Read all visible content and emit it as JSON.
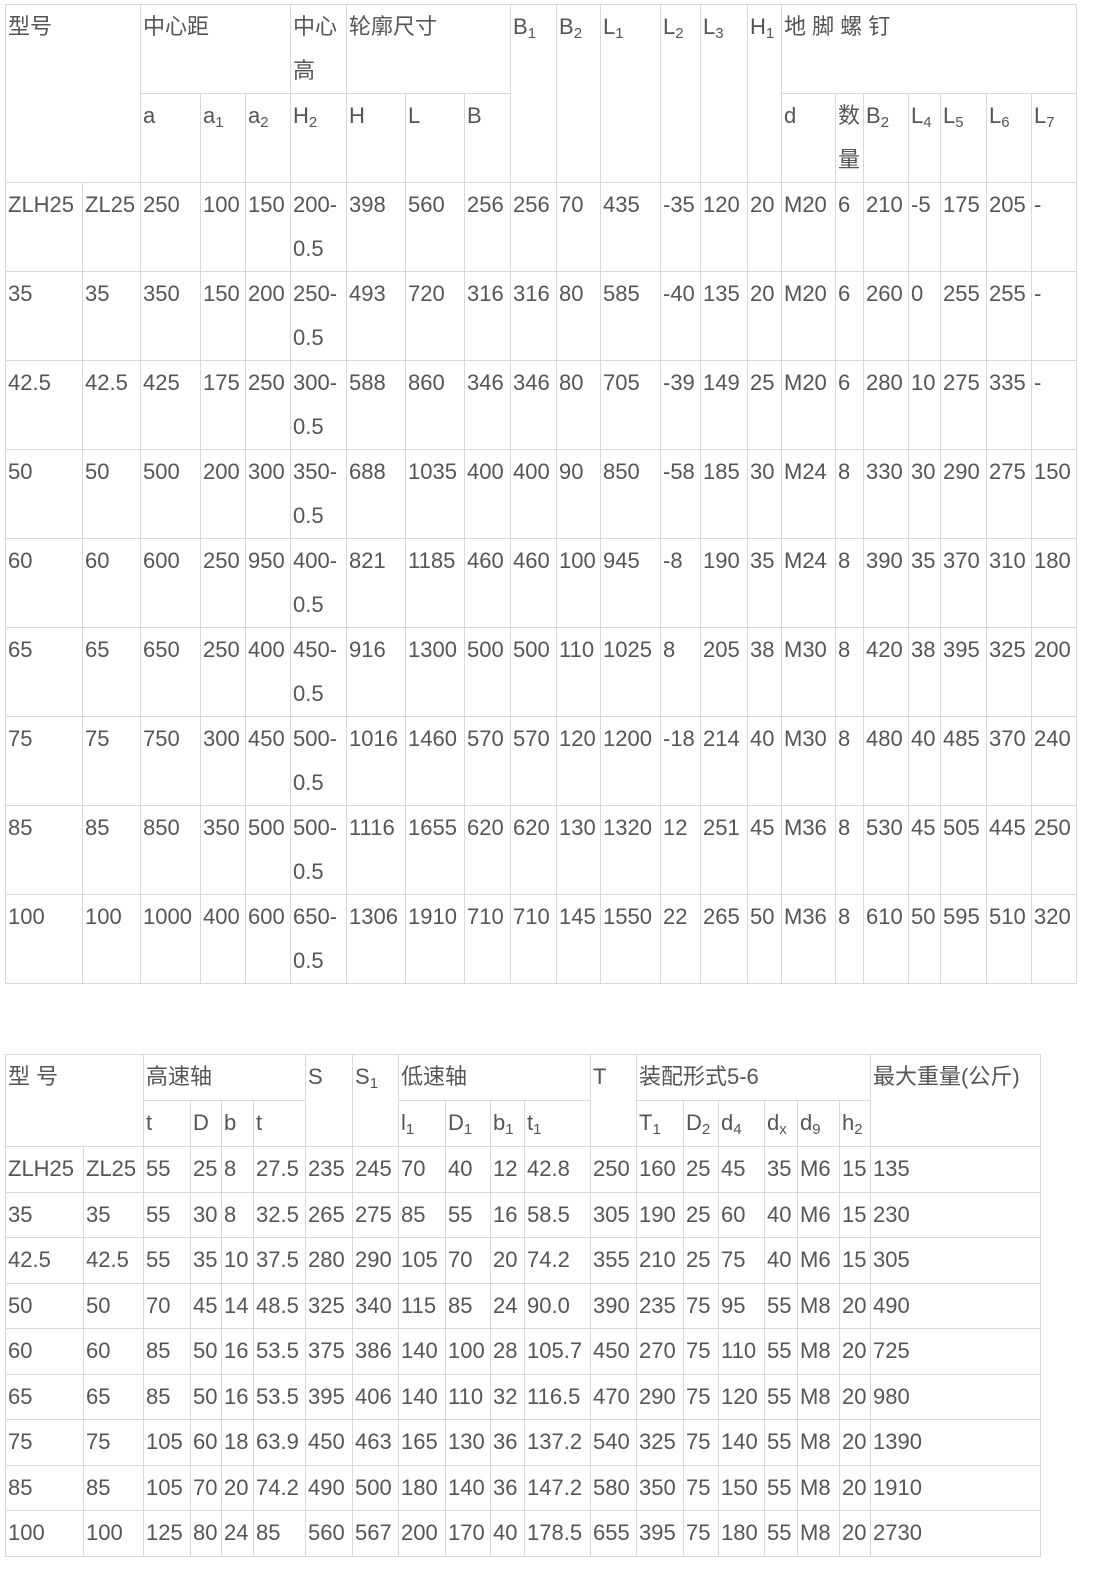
{
  "table1": {
    "col_widths": [
      77,
      58,
      60,
      45,
      45,
      56,
      59,
      59,
      46,
      46,
      44,
      60,
      40,
      47,
      34,
      54,
      28,
      45,
      32,
      46,
      45,
      45
    ],
    "header_row1": [
      {
        "text": "型号",
        "colspan": 2,
        "rowspan": 2
      },
      {
        "text": "中心距",
        "colspan": 3
      },
      {
        "text": "中心高"
      },
      {
        "text": "轮廓尺寸",
        "colspan": 3
      },
      {
        "text": "B",
        "sub": "1",
        "rowspan": 2
      },
      {
        "text": "B",
        "sub": "2",
        "rowspan": 2
      },
      {
        "text": "L",
        "sub": "1",
        "rowspan": 2
      },
      {
        "text": "L",
        "sub": "2",
        "rowspan": 2
      },
      {
        "text": "L",
        "sub": "3",
        "rowspan": 2
      },
      {
        "text": "H",
        "sub": "1",
        "rowspan": 2
      },
      {
        "text": "地 脚  螺 钉",
        "colspan": 7
      }
    ],
    "header_row2": [
      {
        "text": "a"
      },
      {
        "text": "a",
        "sub": "1"
      },
      {
        "text": "a",
        "sub": "2"
      },
      {
        "text": "H",
        "sub": "2"
      },
      {
        "text": "H"
      },
      {
        "text": "L"
      },
      {
        "text": "B"
      },
      {
        "text": "d"
      },
      {
        "text": "数量"
      },
      {
        "text": "B",
        "sub": "2"
      },
      {
        "text": "L",
        "sub": "4"
      },
      {
        "text": "L",
        "sub": "5"
      },
      {
        "text": "L",
        "sub": "6"
      },
      {
        "text": "L",
        "sub": "7"
      }
    ],
    "rows": [
      [
        "ZLH25",
        "ZL25",
        "250",
        "100",
        "150",
        "200-0.5",
        "398",
        "560",
        "256",
        "256",
        "70",
        "435",
        "-35",
        "120",
        "20",
        "M20",
        "6",
        "210",
        "-5",
        "175",
        "205",
        "-"
      ],
      [
        "35",
        "35",
        "350",
        "150",
        "200",
        "250-0.5",
        "493",
        "720",
        "316",
        "316",
        "80",
        "585",
        "-40",
        "135",
        "20",
        "M20",
        "6",
        "260",
        "0",
        "255",
        "255",
        "-"
      ],
      [
        "42.5",
        "42.5",
        "425",
        "175",
        "250",
        "300-0.5",
        "588",
        "860",
        "346",
        "346",
        "80",
        "705",
        "-39",
        "149",
        "25",
        "M20",
        "6",
        "280",
        "10",
        "275",
        "335",
        "-"
      ],
      [
        "50",
        "50",
        "500",
        "200",
        "300",
        "350-0.5",
        "688",
        "1035",
        "400",
        "400",
        "90",
        "850",
        "-58",
        "185",
        "30",
        "M24",
        "8",
        "330",
        "30",
        "290",
        "275",
        "150"
      ],
      [
        "60",
        "60",
        "600",
        "250",
        "950",
        "400-0.5",
        "821",
        "1185",
        "460",
        "460",
        "100",
        "945",
        "-8",
        "190",
        "35",
        "M24",
        "8",
        "390",
        "35",
        "370",
        "310",
        "180"
      ],
      [
        "65",
        "65",
        "650",
        "250",
        "400",
        "450-0.5",
        "916",
        "1300",
        "500",
        "500",
        "110",
        "1025",
        "8",
        "205",
        "38",
        "M30",
        "8",
        "420",
        "38",
        "395",
        "325",
        "200"
      ],
      [
        "75",
        "75",
        "750",
        "300",
        "450",
        "500-0.5",
        "1016",
        "1460",
        "570",
        "570",
        "120",
        "1200",
        "-18",
        "214",
        "40",
        "M30",
        "8",
        "480",
        "40",
        "485",
        "370",
        "240"
      ],
      [
        "85",
        "85",
        "850",
        "350",
        "500",
        "500-0.5",
        "1116",
        "1655",
        "620",
        "620",
        "130",
        "1320",
        "12",
        "251",
        "45",
        "M36",
        "8",
        "530",
        "45",
        "505",
        "445",
        "250"
      ],
      [
        "100",
        "100",
        "1000",
        "400",
        "600",
        "650-0.5",
        "1306",
        "1910",
        "710",
        "710",
        "145",
        "1550",
        "22",
        "265",
        "50",
        "M36",
        "8",
        "610",
        "50",
        "595",
        "510",
        "320"
      ]
    ]
  },
  "table2": {
    "col_widths": [
      78,
      60,
      47,
      31,
      32,
      52,
      47,
      46,
      47,
      45,
      34,
      66,
      46,
      47,
      35,
      46,
      33,
      42,
      31,
      170
    ],
    "header_row1": [
      {
        "text": "型 号",
        "colspan": 2,
        "rowspan": 2
      },
      {
        "text": "高速轴",
        "colspan": 4
      },
      {
        "text": "S",
        "rowspan": 2
      },
      {
        "text": "S",
        "sub": "1",
        "rowspan": 2
      },
      {
        "text": "低速轴",
        "colspan": 4
      },
      {
        "text": "T",
        "rowspan": 2
      },
      {
        "text": "装配形式5-6",
        "colspan": 6
      },
      {
        "text": "最大重量(公斤)",
        "rowspan": 2
      }
    ],
    "header_row2": [
      {
        "text": "t"
      },
      {
        "text": "D"
      },
      {
        "text": "b"
      },
      {
        "text": "t"
      },
      {
        "text": "l",
        "sub": "1"
      },
      {
        "text": "D",
        "sub": "1"
      },
      {
        "text": "b",
        "sub": "1"
      },
      {
        "text": "t",
        "sub": "1"
      },
      {
        "text": "T",
        "sub": "1"
      },
      {
        "text": "D",
        "sub": "2"
      },
      {
        "text": "d",
        "sub": "4"
      },
      {
        "text": "d",
        "sub": "x"
      },
      {
        "text": "d",
        "sub": "9"
      },
      {
        "text": "h",
        "sub": "2"
      }
    ],
    "rows": [
      [
        "ZLH25",
        "ZL25",
        "55",
        "25",
        "8",
        "27.5",
        "235",
        "245",
        "70",
        "40",
        "12",
        "42.8",
        "250",
        "160",
        "25",
        "45",
        "35",
        "M6",
        "15",
        "135"
      ],
      [
        "35",
        "35",
        "55",
        "30",
        "8",
        "32.5",
        "265",
        "275",
        "85",
        "55",
        "16",
        "58.5",
        "305",
        "190",
        "25",
        "60",
        "40",
        "M6",
        "15",
        "230"
      ],
      [
        "42.5",
        "42.5",
        "55",
        "35",
        "10",
        "37.5",
        "280",
        "290",
        "105",
        "70",
        "20",
        "74.2",
        "355",
        "210",
        "25",
        "75",
        "40",
        "M6",
        "15",
        "305"
      ],
      [
        "50",
        "50",
        "70",
        "45",
        "14",
        "48.5",
        "325",
        "340",
        "115",
        "85",
        "24",
        "90.0",
        "390",
        "235",
        "75",
        "95",
        "55",
        "M8",
        "20",
        "490"
      ],
      [
        "60",
        "60",
        "85",
        "50",
        "16",
        "53.5",
        "375",
        "386",
        "140",
        "100",
        "28",
        "105.7",
        "450",
        "270",
        "75",
        "110",
        "55",
        "M8",
        "20",
        "725"
      ],
      [
        "65",
        "65",
        "85",
        "50",
        "16",
        "53.5",
        "395",
        "406",
        "140",
        "110",
        "32",
        "116.5",
        "470",
        "290",
        "75",
        "120",
        "55",
        "M8",
        "20",
        "980"
      ],
      [
        "75",
        "75",
        "105",
        "60",
        "18",
        "63.9",
        "450",
        "463",
        "165",
        "130",
        "36",
        "137.2",
        "540",
        "325",
        "75",
        "140",
        "55",
        "M8",
        "20",
        "1390"
      ],
      [
        "85",
        "85",
        "105",
        "70",
        "20",
        "74.2",
        "490",
        "500",
        "180",
        "140",
        "36",
        "147.2",
        "580",
        "350",
        "75",
        "150",
        "55",
        "M8",
        "20",
        "1910"
      ],
      [
        "100",
        "100",
        "125",
        "80",
        "24",
        "85",
        "560",
        "567",
        "200",
        "170",
        "40",
        "178.5",
        "655",
        "395",
        "75",
        "180",
        "55",
        "M8",
        "20",
        "2730"
      ]
    ]
  }
}
